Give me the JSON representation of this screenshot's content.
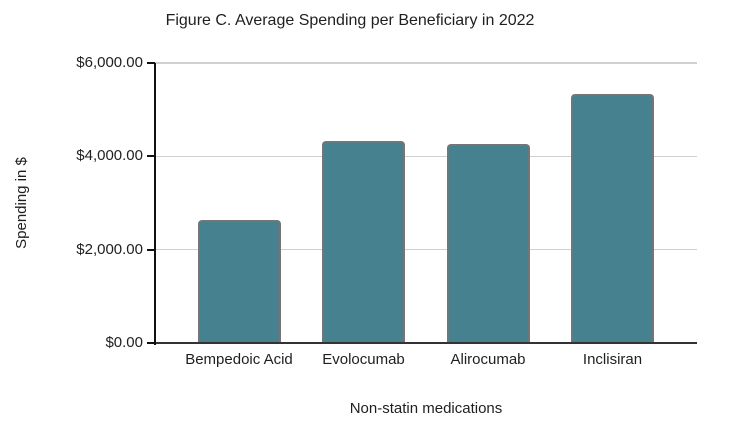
{
  "chart_data": {
    "type": "bar",
    "title": "Figure C. Average Spending per Beneficiary in 2022",
    "xlabel": "Non-statin medications",
    "ylabel": "Spending in $",
    "categories": [
      "Bempedoic Acid",
      "Evolocumab",
      "Alirocumab",
      "Inclisiran"
    ],
    "values": [
      2630,
      4330,
      4260,
      5330
    ],
    "ylim": [
      0,
      6000
    ],
    "yticks": [
      0,
      2000,
      4000,
      6000
    ],
    "ytick_labels": [
      "$0.00",
      "$2,000.00",
      "$4,000.00",
      "$6,000.00"
    ],
    "grid": true,
    "legend": "none",
    "colors": {
      "bar_fill": "#45818e",
      "bar_border": "#757575",
      "gridline": "#d0d0d0",
      "axis": "#111111",
      "baseline": "#333333",
      "text": "#1f1f1f",
      "background": "#ffffff"
    }
  }
}
